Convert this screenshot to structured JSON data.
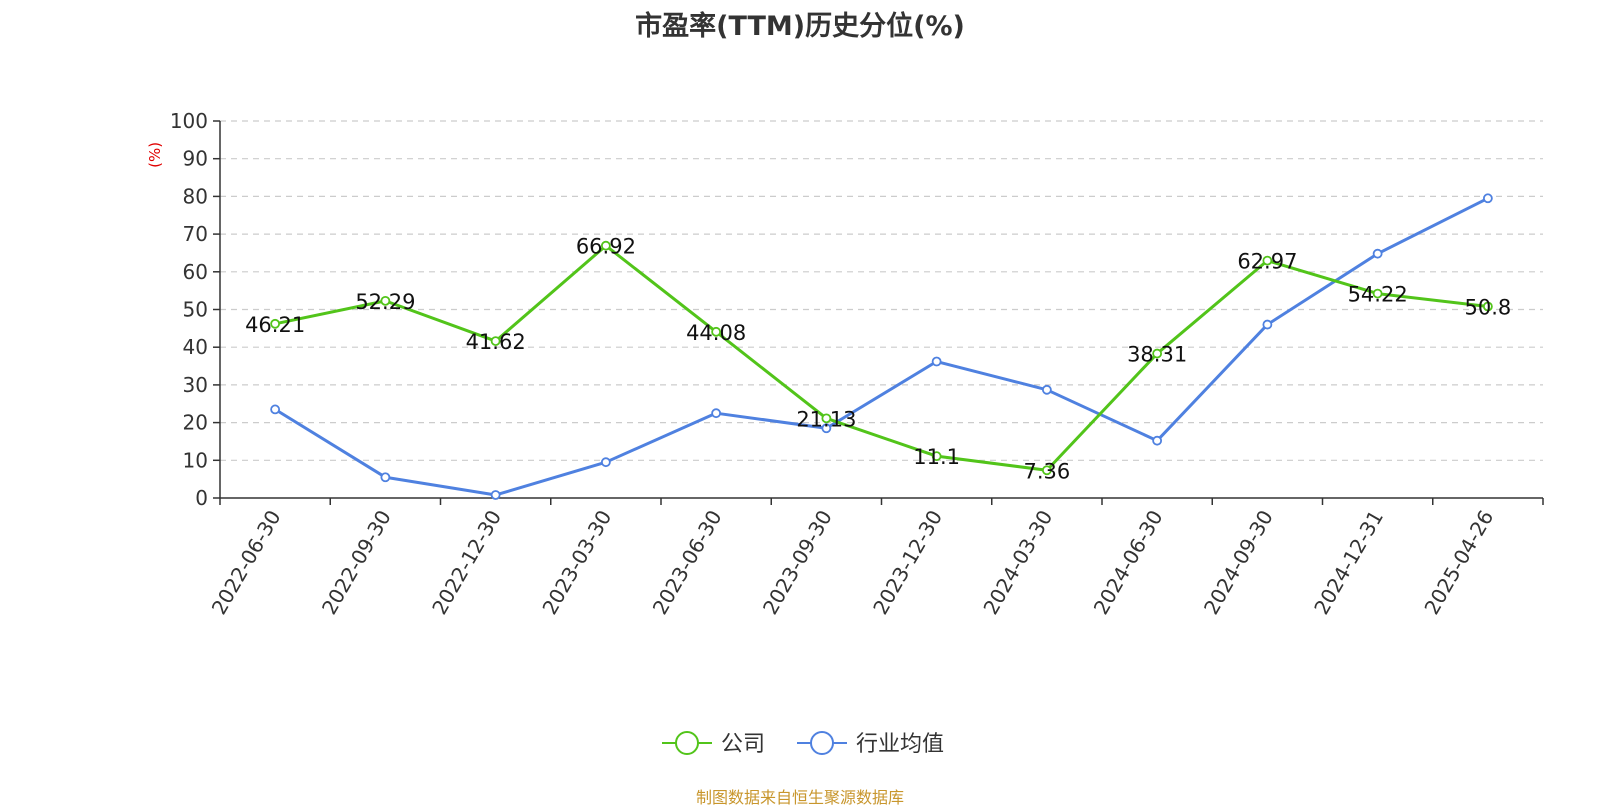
{
  "chart_data": {
    "type": "line",
    "title": "市盈率(TTM)历史分位(%)",
    "ylabel": "(%)",
    "xlabel": "",
    "ylim": [
      0,
      100
    ],
    "yticks": [
      0,
      10,
      20,
      30,
      40,
      50,
      60,
      70,
      80,
      90,
      100
    ],
    "grid": true,
    "legend_position": "bottom-center",
    "categories": [
      "2022-06-30",
      "2022-09-30",
      "2022-12-30",
      "2023-03-30",
      "2023-06-30",
      "2023-09-30",
      "2023-12-30",
      "2024-03-30",
      "2024-06-30",
      "2024-09-30",
      "2024-12-31",
      "2025-04-26"
    ],
    "series": [
      {
        "name": "公司",
        "color": "#52c41a",
        "values": [
          46.21,
          52.29,
          41.62,
          66.92,
          44.08,
          21.13,
          11.1,
          7.36,
          38.31,
          62.97,
          54.22,
          50.8
        ],
        "labels": [
          "46.21",
          "52.29",
          "41.62",
          "66.92",
          "44.08",
          "21.13",
          "11.1",
          "7.36",
          "38.31",
          "62.97",
          "54.22",
          "50.8"
        ]
      },
      {
        "name": "行业均值",
        "color": "#4f81e0",
        "values": [
          23.5,
          5.5,
          0.8,
          9.5,
          22.5,
          18.5,
          36.2,
          28.7,
          15.2,
          46.0,
          64.8,
          79.5
        ]
      }
    ]
  },
  "source": "制图数据来自恒生聚源数据库"
}
